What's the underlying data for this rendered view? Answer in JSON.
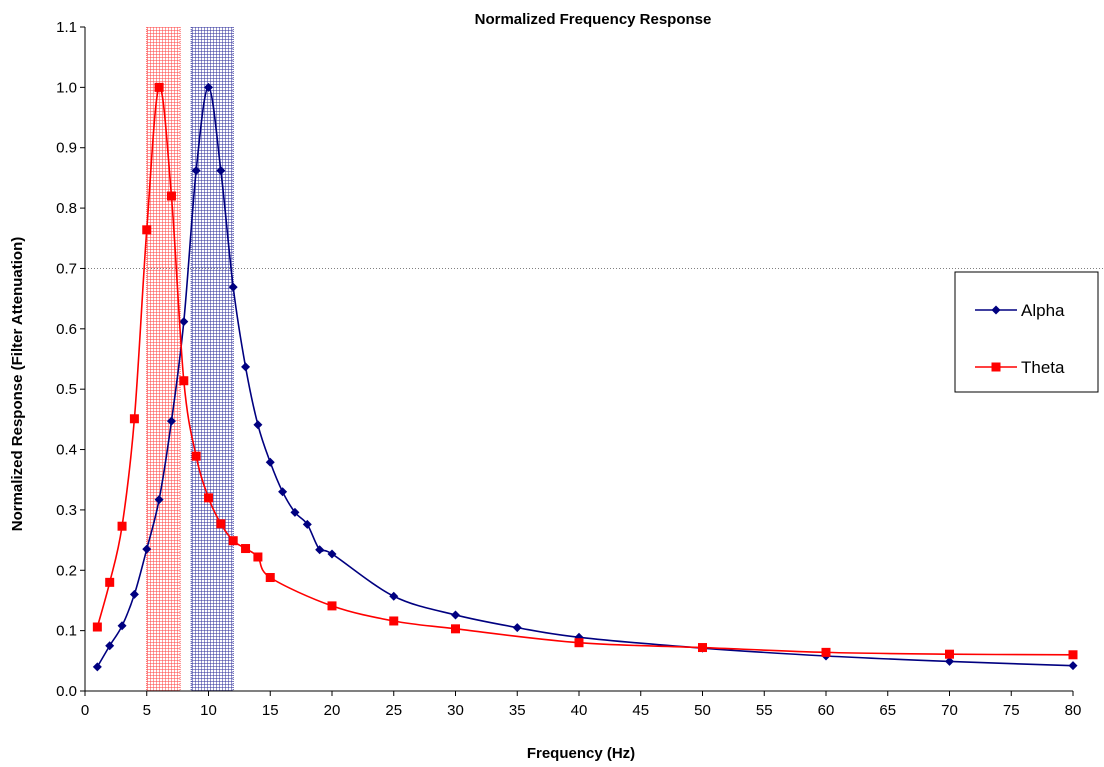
{
  "chart_data": {
    "type": "line",
    "title": "Normalized Frequency Response",
    "xlabel": "Frequency (Hz)",
    "ylabel": "Normalized Response (Filter Attenuation)",
    "xlim": [
      0,
      80
    ],
    "ylim": [
      0,
      1.1
    ],
    "x_ticks": [
      "0",
      "5",
      "10",
      "15",
      "20",
      "25",
      "30",
      "35",
      "40",
      "45",
      "50",
      "55",
      "60",
      "65",
      "70",
      "75",
      "80"
    ],
    "y_ticks": [
      "0.0",
      "0.1",
      "0.2",
      "0.3",
      "0.4",
      "0.5",
      "0.6",
      "0.7",
      "0.8",
      "0.9",
      "1.0",
      "1.1"
    ],
    "grid": false,
    "legend_position": "right",
    "reference_line": {
      "y": 0.7
    },
    "bands": [
      {
        "x_start": 5,
        "x_end": 7.7,
        "color": "#ff4d4d"
      },
      {
        "x_start": 8.6,
        "x_end": 12,
        "color": "#3a3aa0"
      }
    ],
    "series": [
      {
        "name": "Alpha",
        "color": "#000080",
        "marker": "diamond",
        "x": [
          1,
          2,
          3,
          4,
          5,
          6,
          7,
          8,
          9,
          10,
          11,
          12,
          13,
          14,
          15,
          16,
          17,
          18,
          19,
          20,
          25,
          30,
          35,
          40,
          50,
          60,
          70,
          80
        ],
        "y": [
          0.04,
          0.075,
          0.108,
          0.16,
          0.235,
          0.317,
          0.447,
          0.612,
          0.862,
          1.0,
          0.862,
          0.669,
          0.537,
          0.441,
          0.379,
          0.33,
          0.296,
          0.276,
          0.234,
          0.227,
          0.157,
          0.126,
          0.105,
          0.089,
          0.071,
          0.058,
          0.049,
          0.042
        ]
      },
      {
        "name": "Theta",
        "color": "#ff0000",
        "marker": "square",
        "x": [
          1,
          2,
          3,
          4,
          5,
          6,
          7,
          8,
          9,
          10,
          11,
          12,
          13,
          14,
          15,
          20,
          25,
          30,
          40,
          50,
          60,
          70,
          80
        ],
        "y": [
          0.106,
          0.18,
          0.273,
          0.451,
          0.764,
          1.0,
          0.82,
          0.514,
          0.389,
          0.32,
          0.277,
          0.249,
          0.236,
          0.222,
          0.188,
          0.141,
          0.116,
          0.103,
          0.08,
          0.072,
          0.064,
          0.061,
          0.06
        ]
      }
    ]
  }
}
